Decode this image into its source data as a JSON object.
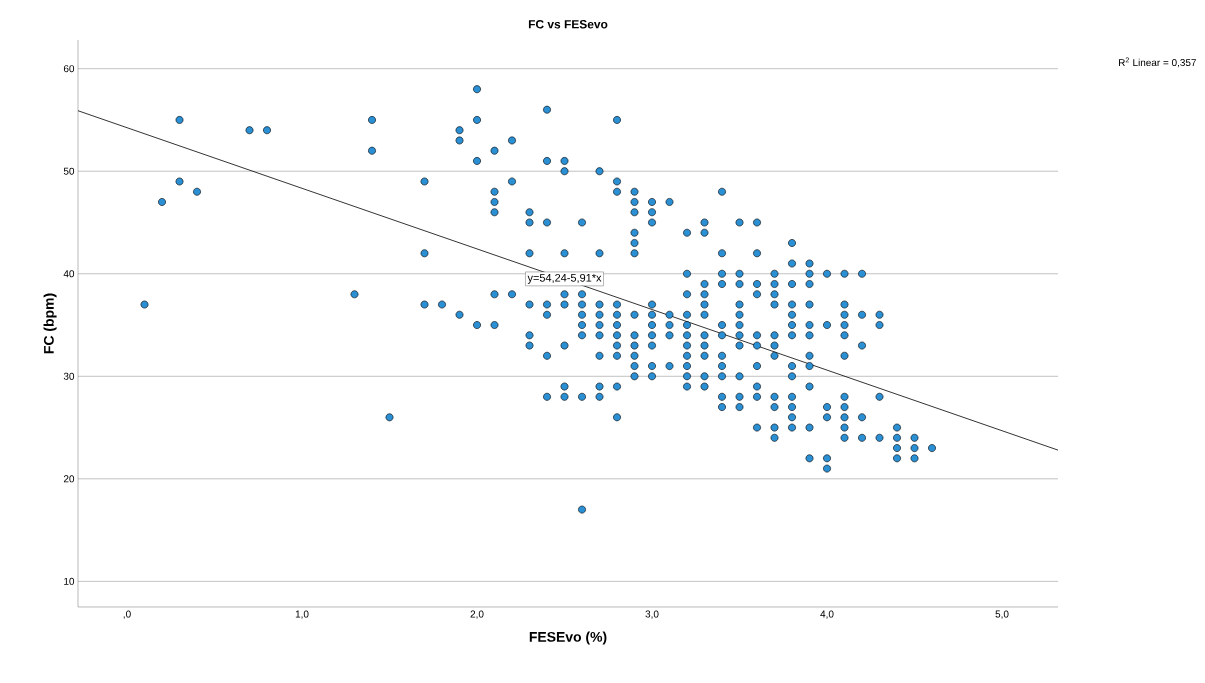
{
  "chart_data": {
    "type": "scatter",
    "title": "FC vs FESevo",
    "xlabel": "FESEvo (%)",
    "ylabel": "FC (bpm)",
    "xlim": [
      -0.28,
      5.32
    ],
    "ylim": [
      7.5,
      62.8
    ],
    "xticks": [
      {
        "value": 0,
        "label": ",0"
      },
      {
        "value": 1,
        "label": "1,0"
      },
      {
        "value": 2,
        "label": "2,0"
      },
      {
        "value": 3,
        "label": "3,0"
      },
      {
        "value": 4,
        "label": "4,0"
      },
      {
        "value": 5,
        "label": "5,0"
      }
    ],
    "yticks": [
      10,
      20,
      30,
      40,
      50,
      60
    ],
    "grid": "y",
    "annotations": [
      "R$^{2}$ Linear = 0,357",
      {
        "text": "y=54,24-5,91*x",
        "x": 2.5,
        "y": 39.5
      }
    ],
    "series": [
      {
        "color": "#2b8fd4",
        "marker": "circle",
        "x": [
          0.1,
          0.2,
          0.3,
          0.3,
          0.4,
          0.7,
          0.8,
          1.3,
          1.4,
          1.4,
          1.5,
          1.7,
          1.7,
          1.7,
          1.8,
          1.9,
          1.9,
          1.9,
          2.0,
          2.0,
          2.0,
          2.0,
          2.1,
          2.1,
          2.1,
          2.1,
          2.1,
          2.1,
          2.2,
          2.2,
          2.2,
          2.3,
          2.3,
          2.3,
          2.3,
          2.3,
          2.3,
          2.4,
          2.4,
          2.4,
          2.4,
          2.4,
          2.4,
          2.4,
          2.5,
          2.5,
          2.5,
          2.5,
          2.5,
          2.5,
          2.5,
          2.5,
          2.6,
          2.6,
          2.6,
          2.6,
          2.6,
          2.6,
          2.6,
          2.6,
          2.7,
          2.7,
          2.7,
          2.7,
          2.7,
          2.7,
          2.7,
          2.7,
          2.7,
          2.8,
          2.8,
          2.8,
          2.8,
          2.8,
          2.8,
          2.8,
          2.8,
          2.8,
          2.8,
          2.8,
          2.9,
          2.9,
          2.9,
          2.9,
          2.9,
          2.9,
          2.9,
          2.9,
          2.9,
          2.9,
          2.9,
          2.9,
          3.0,
          3.0,
          3.0,
          3.0,
          3.0,
          3.0,
          3.0,
          3.0,
          3.0,
          3.0,
          3.1,
          3.1,
          3.1,
          3.1,
          3.1,
          3.2,
          3.2,
          3.2,
          3.2,
          3.2,
          3.2,
          3.2,
          3.2,
          3.2,
          3.2,
          3.2,
          3.3,
          3.3,
          3.3,
          3.3,
          3.3,
          3.3,
          3.3,
          3.3,
          3.3,
          3.3,
          3.3,
          3.4,
          3.4,
          3.4,
          3.4,
          3.4,
          3.4,
          3.4,
          3.4,
          3.4,
          3.4,
          3.4,
          3.5,
          3.5,
          3.5,
          3.5,
          3.5,
          3.5,
          3.5,
          3.5,
          3.5,
          3.5,
          3.5,
          3.6,
          3.6,
          3.6,
          3.6,
          3.6,
          3.6,
          3.6,
          3.6,
          3.6,
          3.6,
          3.7,
          3.7,
          3.7,
          3.7,
          3.7,
          3.7,
          3.7,
          3.7,
          3.7,
          3.7,
          3.7,
          3.8,
          3.8,
          3.8,
          3.8,
          3.8,
          3.8,
          3.8,
          3.8,
          3.8,
          3.8,
          3.8,
          3.8,
          3.8,
          3.9,
          3.9,
          3.9,
          3.9,
          3.9,
          3.9,
          3.9,
          3.9,
          3.9,
          3.9,
          3.9,
          4.0,
          4.0,
          4.0,
          4.0,
          4.0,
          4.0,
          4.1,
          4.1,
          4.1,
          4.1,
          4.1,
          4.1,
          4.1,
          4.1,
          4.1,
          4.1,
          4.1,
          4.2,
          4.2,
          4.2,
          4.2,
          4.2,
          4.3,
          4.3,
          4.3,
          4.3,
          4.4,
          4.4,
          4.4,
          4.4,
          4.5,
          4.5,
          4.5,
          4.6
        ],
        "values": [
          37,
          47,
          55,
          49,
          48,
          54,
          54,
          38,
          55,
          52,
          26,
          49,
          42,
          37,
          37,
          54,
          53,
          36,
          58,
          55,
          51,
          35,
          52,
          48,
          47,
          46,
          38,
          35,
          53,
          49,
          38,
          46,
          45,
          42,
          37,
          34,
          33,
          56,
          51,
          45,
          37,
          36,
          32,
          28,
          51,
          50,
          42,
          38,
          37,
          33,
          29,
          28,
          45,
          38,
          37,
          36,
          35,
          34,
          28,
          17,
          50,
          42,
          37,
          36,
          35,
          34,
          32,
          29,
          28,
          55,
          49,
          48,
          37,
          36,
          35,
          34,
          33,
          32,
          29,
          26,
          48,
          47,
          46,
          44,
          43,
          42,
          36,
          34,
          33,
          32,
          31,
          30,
          47,
          46,
          45,
          37,
          36,
          35,
          34,
          33,
          31,
          30,
          47,
          36,
          35,
          34,
          31,
          44,
          40,
          38,
          36,
          35,
          34,
          33,
          32,
          31,
          30,
          29,
          45,
          44,
          39,
          38,
          37,
          36,
          34,
          33,
          32,
          30,
          29,
          48,
          42,
          40,
          39,
          35,
          34,
          32,
          31,
          30,
          28,
          27,
          45,
          40,
          39,
          37,
          36,
          35,
          34,
          33,
          30,
          28,
          27,
          45,
          42,
          39,
          38,
          34,
          33,
          31,
          29,
          28,
          25,
          40,
          39,
          38,
          37,
          34,
          33,
          32,
          28,
          27,
          25,
          24,
          43,
          41,
          39,
          37,
          36,
          35,
          34,
          31,
          30,
          28,
          27,
          26,
          25,
          41,
          40,
          39,
          37,
          35,
          34,
          32,
          31,
          29,
          25,
          22,
          40,
          35,
          27,
          26,
          22,
          21,
          40,
          37,
          36,
          35,
          34,
          32,
          28,
          27,
          26,
          25,
          24,
          40,
          36,
          33,
          26,
          24,
          36,
          35,
          28,
          24,
          25,
          24,
          23,
          22,
          24,
          23,
          22,
          23
        ]
      },
      {
        "type": "line",
        "color": "#000000",
        "marker": "none",
        "x": [
          -0.28,
          5.32
        ],
        "values": [
          55.9,
          22.8
        ]
      }
    ]
  }
}
